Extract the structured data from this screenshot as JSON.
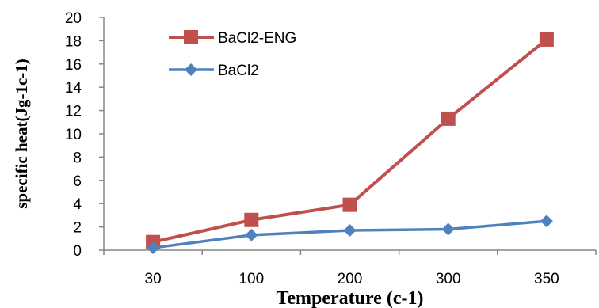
{
  "chart_data": {
    "type": "line",
    "categories": [
      "30",
      "100",
      "200",
      "300",
      "350"
    ],
    "series": [
      {
        "name": "BaCl2-ENG",
        "values": [
          0.7,
          2.6,
          3.9,
          11.3,
          18.1
        ],
        "color": "#C0504D",
        "marker": "square"
      },
      {
        "name": "BaCl2",
        "values": [
          0.2,
          1.3,
          1.7,
          1.8,
          2.5
        ],
        "color": "#4F81BD",
        "marker": "diamond"
      }
    ],
    "xlabel": "Temperature (c-1)",
    "ylabel": "specific heat(Jg-1c-1)",
    "ylim": [
      0,
      20
    ],
    "yticks": [
      "0",
      "2",
      "4",
      "6",
      "8",
      "10",
      "12",
      "14",
      "16",
      "18",
      "20"
    ],
    "grid": false,
    "legend_position": "top-left"
  }
}
